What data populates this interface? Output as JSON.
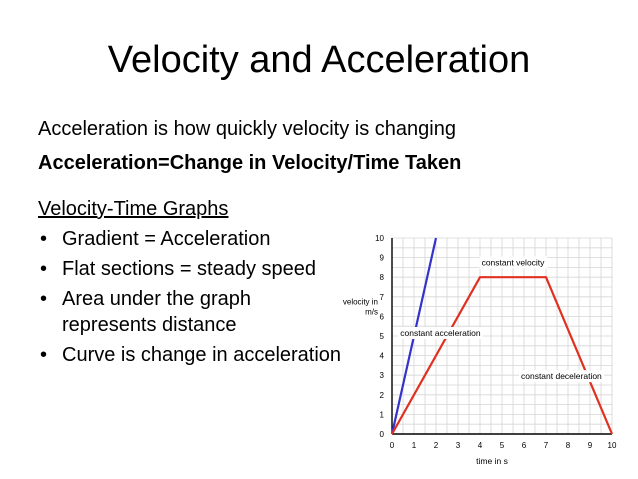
{
  "slide": {
    "title": "Velocity and Acceleration",
    "line1": "Acceleration is how quickly velocity is changing",
    "line2": "Acceleration=Change in Velocity/Time Taken",
    "subheading": "Velocity-Time Graphs",
    "bullets": [
      "Gradient = Acceleration",
      "Flat sections = steady speed",
      "Area under the graph represents distance",
      "Curve is change in acceleration"
    ],
    "bullet_glyph": "•"
  },
  "chart_data": {
    "type": "line",
    "xlabel": "time in s",
    "ylabel": "velocity in m/s",
    "xlim": [
      0,
      10
    ],
    "ylim": [
      0,
      10
    ],
    "xticks": [
      0,
      1,
      2,
      3,
      4,
      5,
      6,
      7,
      8,
      9,
      10
    ],
    "yticks": [
      0,
      1,
      2,
      3,
      4,
      5,
      6,
      7,
      8,
      9,
      10
    ],
    "grid": true,
    "series": [
      {
        "color": "#3333cc",
        "points": [
          [
            0,
            0
          ],
          [
            2,
            10
          ]
        ]
      },
      {
        "color": "#e03020",
        "points": [
          [
            0,
            0
          ],
          [
            4,
            8
          ],
          [
            7,
            8
          ],
          [
            10,
            0
          ]
        ]
      }
    ],
    "annotations": [
      {
        "text": "constant velocity",
        "x": 5.5,
        "y": 8.6
      },
      {
        "text": "constant acceleration",
        "x": 2.2,
        "y": 5.0
      },
      {
        "text": "constant deceleration",
        "x": 7.7,
        "y": 2.8
      }
    ]
  }
}
